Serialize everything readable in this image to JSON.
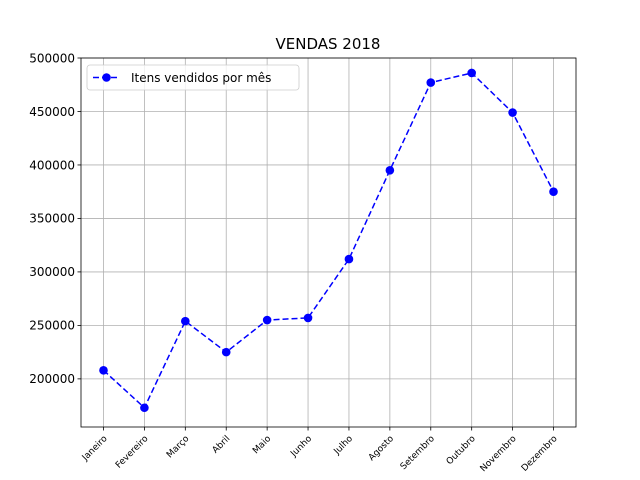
{
  "chart_data": {
    "type": "line",
    "title": "VENDAS 2018",
    "xlabel": "",
    "ylabel": "",
    "categories": [
      "Janeiro",
      "Fevereiro",
      "Março",
      "Abril",
      "Maio",
      "Junho",
      "Julho",
      "Agosto",
      "Setembro",
      "Outubro",
      "Novembro",
      "Dezembro"
    ],
    "series": [
      {
        "name": "Itens vendidos por mês",
        "values": [
          208000,
          173000,
          254000,
          225000,
          255000,
          257000,
          312000,
          395000,
          477000,
          486000,
          449000,
          375000
        ],
        "color": "#0000ff",
        "line_style": "dashed",
        "marker": "circle"
      }
    ],
    "ylim": [
      155000,
      500000
    ],
    "yticks": [
      200000,
      250000,
      300000,
      350000,
      400000,
      450000,
      500000
    ],
    "ytick_labels": [
      "200000",
      "250000",
      "300000",
      "350000",
      "400000",
      "450000",
      "500000"
    ],
    "grid": true,
    "legend_position": "top-left",
    "xtick_rotation": 45
  }
}
